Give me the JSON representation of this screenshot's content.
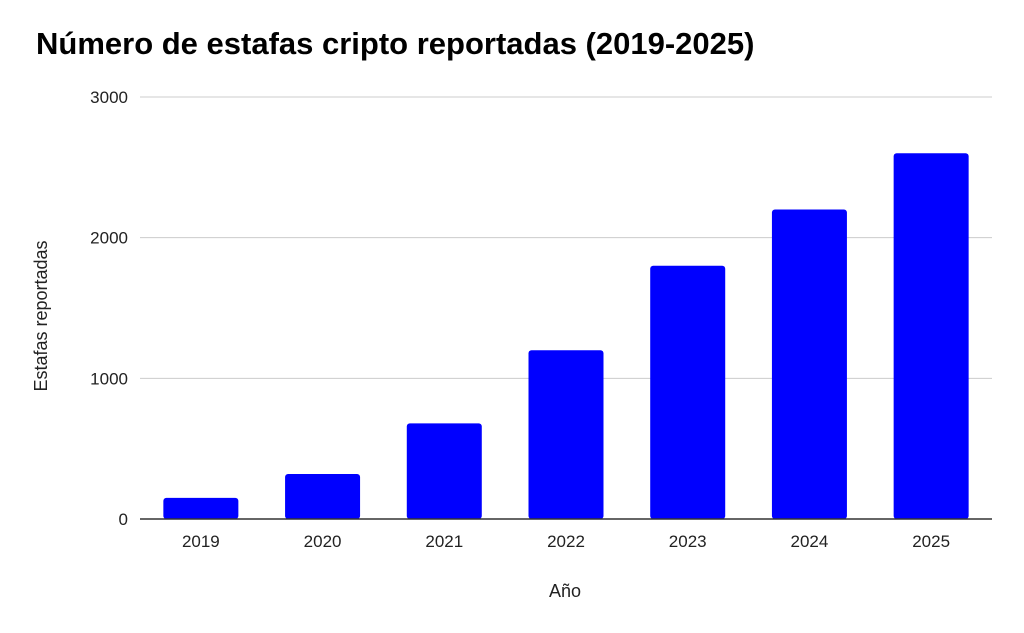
{
  "chart_data": {
    "type": "bar",
    "title": "Número de estafas cripto reportadas (2019-2025)",
    "xlabel": "Año",
    "ylabel": "Estafas reportadas",
    "categories": [
      "2019",
      "2020",
      "2021",
      "2022",
      "2023",
      "2024",
      "2025"
    ],
    "values": [
      150,
      320,
      680,
      1200,
      1800,
      2200,
      2600
    ],
    "ylim": [
      0,
      3000
    ],
    "yticks": [
      "0",
      "1000",
      "2000",
      "3000"
    ],
    "bar_color": "#0000ff",
    "grid": true,
    "legend": "none"
  }
}
